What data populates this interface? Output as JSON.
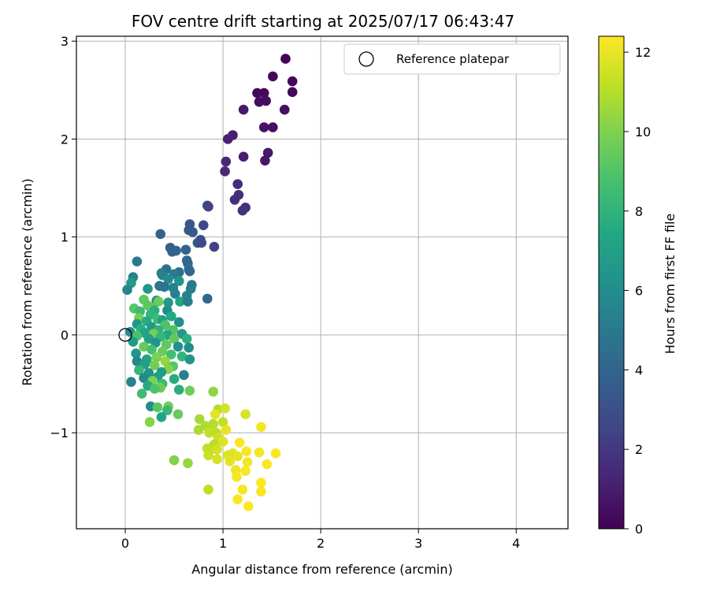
{
  "chart_data": {
    "type": "scatter",
    "title": "FOV centre drift starting at 2025/07/17 06:43:47",
    "xlabel": "Angular distance from reference (arcmin)",
    "ylabel": "Rotation from reference (arcmin)",
    "xlim": [
      -0.5,
      4.53
    ],
    "ylim": [
      -1.98,
      3.05
    ],
    "xticks": [
      0,
      1,
      2,
      3,
      4
    ],
    "yticks": [
      -1,
      0,
      1,
      2,
      3
    ],
    "ytick_labels": [
      "−1",
      "0",
      "1",
      "2",
      "3"
    ],
    "xtick_labels": [
      "0",
      "1",
      "2",
      "3",
      "4"
    ],
    "grid": true,
    "legend": {
      "placement": "top-right",
      "entries": [
        {
          "label": "Reference platepar",
          "marker": "open-circle",
          "color": "#000000"
        }
      ]
    },
    "reference_point": {
      "x": 0,
      "y": 0
    },
    "colorbar": {
      "label": "Hours from first FF file",
      "colormap": "viridis",
      "range": [
        0,
        12.4
      ],
      "ticks": [
        0,
        2,
        4,
        6,
        8,
        10,
        12
      ]
    },
    "points": [
      {
        "x": 1.64,
        "y": 2.82,
        "c": 0.1
      },
      {
        "x": 1.51,
        "y": 2.64,
        "c": 0.2
      },
      {
        "x": 1.71,
        "y": 2.59,
        "c": 0.2
      },
      {
        "x": 1.35,
        "y": 2.47,
        "c": 0.3
      },
      {
        "x": 1.42,
        "y": 2.47,
        "c": 0.3
      },
      {
        "x": 1.71,
        "y": 2.48,
        "c": 0.3
      },
      {
        "x": 1.44,
        "y": 2.39,
        "c": 0.4
      },
      {
        "x": 1.37,
        "y": 2.38,
        "c": 0.4
      },
      {
        "x": 1.63,
        "y": 2.3,
        "c": 0.5
      },
      {
        "x": 1.21,
        "y": 2.3,
        "c": 0.8
      },
      {
        "x": 1.51,
        "y": 2.12,
        "c": 0.5
      },
      {
        "x": 1.42,
        "y": 2.12,
        "c": 0.6
      },
      {
        "x": 1.1,
        "y": 2.04,
        "c": 1.0
      },
      {
        "x": 1.05,
        "y": 2.0,
        "c": 1.1
      },
      {
        "x": 1.46,
        "y": 1.86,
        "c": 0.9
      },
      {
        "x": 1.21,
        "y": 1.82,
        "c": 1.0
      },
      {
        "x": 1.43,
        "y": 1.78,
        "c": 0.8
      },
      {
        "x": 1.03,
        "y": 1.77,
        "c": 1.4
      },
      {
        "x": 1.02,
        "y": 1.67,
        "c": 1.5
      },
      {
        "x": 1.15,
        "y": 1.54,
        "c": 1.5
      },
      {
        "x": 1.16,
        "y": 1.43,
        "c": 1.7
      },
      {
        "x": 1.12,
        "y": 1.38,
        "c": 1.6
      },
      {
        "x": 1.23,
        "y": 1.3,
        "c": 1.7
      },
      {
        "x": 1.2,
        "y": 1.27,
        "c": 1.8
      },
      {
        "x": 0.85,
        "y": 1.31,
        "c": 2.4
      },
      {
        "x": 0.84,
        "y": 1.32,
        "c": 2.5
      },
      {
        "x": 0.66,
        "y": 1.13,
        "c": 3.4
      },
      {
        "x": 0.8,
        "y": 1.12,
        "c": 2.7
      },
      {
        "x": 0.65,
        "y": 1.07,
        "c": 3.3
      },
      {
        "x": 0.69,
        "y": 1.05,
        "c": 3.5
      },
      {
        "x": 0.36,
        "y": 1.03,
        "c": 3.9
      },
      {
        "x": 0.77,
        "y": 0.97,
        "c": 2.9
      },
      {
        "x": 0.74,
        "y": 0.94,
        "c": 3.3
      },
      {
        "x": 0.78,
        "y": 0.94,
        "c": 2.8
      },
      {
        "x": 0.91,
        "y": 0.9,
        "c": 2.4
      },
      {
        "x": 0.46,
        "y": 0.89,
        "c": 3.8
      },
      {
        "x": 0.52,
        "y": 0.86,
        "c": 4.0
      },
      {
        "x": 0.62,
        "y": 0.87,
        "c": 3.9
      },
      {
        "x": 0.48,
        "y": 0.85,
        "c": 3.9
      },
      {
        "x": 0.63,
        "y": 0.76,
        "c": 4.3
      },
      {
        "x": 0.12,
        "y": 0.75,
        "c": 5.0
      },
      {
        "x": 0.64,
        "y": 0.73,
        "c": 4.1
      },
      {
        "x": 0.42,
        "y": 0.67,
        "c": 4.6
      },
      {
        "x": 0.65,
        "y": 0.67,
        "c": 4.5
      },
      {
        "x": 0.66,
        "y": 0.65,
        "c": 4.2
      },
      {
        "x": 0.55,
        "y": 0.64,
        "c": 4.4
      },
      {
        "x": 0.37,
        "y": 0.63,
        "c": 5.2
      },
      {
        "x": 0.5,
        "y": 0.62,
        "c": 5.0
      },
      {
        "x": 0.38,
        "y": 0.61,
        "c": 5.4
      },
      {
        "x": 0.08,
        "y": 0.59,
        "c": 5.5
      },
      {
        "x": 0.44,
        "y": 0.57,
        "c": 6.0
      },
      {
        "x": 0.55,
        "y": 0.55,
        "c": 6.4
      },
      {
        "x": 0.06,
        "y": 0.53,
        "c": 6.8
      },
      {
        "x": 0.68,
        "y": 0.51,
        "c": 4.9
      },
      {
        "x": 0.35,
        "y": 0.5,
        "c": 4.7
      },
      {
        "x": 0.4,
        "y": 0.49,
        "c": 4.8
      },
      {
        "x": 0.49,
        "y": 0.48,
        "c": 5.3
      },
      {
        "x": 0.67,
        "y": 0.47,
        "c": 5.1
      },
      {
        "x": 0.02,
        "y": 0.46,
        "c": 5.6
      },
      {
        "x": 0.23,
        "y": 0.47,
        "c": 6.6
      },
      {
        "x": 0.51,
        "y": 0.42,
        "c": 5.3
      },
      {
        "x": 0.63,
        "y": 0.4,
        "c": 5.4
      },
      {
        "x": 0.84,
        "y": 0.37,
        "c": 4.1
      },
      {
        "x": 0.19,
        "y": 0.36,
        "c": 9.3
      },
      {
        "x": 0.32,
        "y": 0.35,
        "c": 6.1
      },
      {
        "x": 0.56,
        "y": 0.34,
        "c": 7.3
      },
      {
        "x": 0.44,
        "y": 0.33,
        "c": 6.7
      },
      {
        "x": 0.64,
        "y": 0.34,
        "c": 5.2
      },
      {
        "x": 0.34,
        "y": 0.34,
        "c": 9.6
      },
      {
        "x": 0.23,
        "y": 0.3,
        "c": 9.2
      },
      {
        "x": 0.09,
        "y": 0.27,
        "c": 9.1
      },
      {
        "x": 0.27,
        "y": 0.28,
        "c": 9.3
      },
      {
        "x": 0.15,
        "y": 0.24,
        "c": 8.4
      },
      {
        "x": 0.3,
        "y": 0.25,
        "c": 7.8
      },
      {
        "x": 0.43,
        "y": 0.25,
        "c": 6.0
      },
      {
        "x": 0.26,
        "y": 0.21,
        "c": 8.1
      },
      {
        "x": 0.47,
        "y": 0.19,
        "c": 7.5
      },
      {
        "x": 0.14,
        "y": 0.17,
        "c": 9.8
      },
      {
        "x": 0.33,
        "y": 0.16,
        "c": 8.5
      },
      {
        "x": 0.38,
        "y": 0.15,
        "c": 7.1
      },
      {
        "x": 0.22,
        "y": 0.14,
        "c": 7.6
      },
      {
        "x": 0.55,
        "y": 0.13,
        "c": 6.1
      },
      {
        "x": 0.12,
        "y": 0.11,
        "c": 6.5
      },
      {
        "x": 0.41,
        "y": 0.1,
        "c": 8.9
      },
      {
        "x": 0.27,
        "y": 0.08,
        "c": 6.7
      },
      {
        "x": 0.16,
        "y": 0.06,
        "c": 7.8
      },
      {
        "x": 0.34,
        "y": 0.05,
        "c": 8.0
      },
      {
        "x": 0.49,
        "y": 0.05,
        "c": 9.0
      },
      {
        "x": 0.05,
        "y": 0.03,
        "c": 6.0
      },
      {
        "x": 0.2,
        "y": 0.02,
        "c": 7.2
      },
      {
        "x": 0.29,
        "y": 0.01,
        "c": 9.8
      },
      {
        "x": 0.43,
        "y": 0.0,
        "c": 7.4
      },
      {
        "x": 0.58,
        "y": 0.01,
        "c": 6.6
      },
      {
        "x": 0.12,
        "y": -0.01,
        "c": 8.8
      },
      {
        "x": 0.36,
        "y": -0.02,
        "c": 8.2
      },
      {
        "x": 0.24,
        "y": -0.04,
        "c": 7.0
      },
      {
        "x": 0.5,
        "y": -0.04,
        "c": 9.4
      },
      {
        "x": 0.63,
        "y": -0.04,
        "c": 7.9
      },
      {
        "x": 0.08,
        "y": -0.07,
        "c": 6.8
      },
      {
        "x": 0.31,
        "y": -0.08,
        "c": 6.3
      },
      {
        "x": 0.42,
        "y": -0.1,
        "c": 9.3
      },
      {
        "x": 0.19,
        "y": -0.12,
        "c": 9.5
      },
      {
        "x": 0.54,
        "y": -0.12,
        "c": 6.1
      },
      {
        "x": 0.65,
        "y": -0.13,
        "c": 6.0
      },
      {
        "x": 0.27,
        "y": -0.15,
        "c": 8.7
      },
      {
        "x": 0.38,
        "y": -0.17,
        "c": 9.6
      },
      {
        "x": 0.11,
        "y": -0.19,
        "c": 6.4
      },
      {
        "x": 0.47,
        "y": -0.2,
        "c": 8.6
      },
      {
        "x": 0.58,
        "y": -0.22,
        "c": 8.1
      },
      {
        "x": 0.32,
        "y": -0.23,
        "c": 9.9
      },
      {
        "x": 0.22,
        "y": -0.25,
        "c": 7.3
      },
      {
        "x": 0.12,
        "y": -0.27,
        "c": 5.7
      },
      {
        "x": 0.66,
        "y": -0.25,
        "c": 6.4
      },
      {
        "x": 0.41,
        "y": -0.27,
        "c": 10.4
      },
      {
        "x": 0.2,
        "y": -0.3,
        "c": 7.0
      },
      {
        "x": 0.3,
        "y": -0.31,
        "c": 9.7
      },
      {
        "x": 0.49,
        "y": -0.32,
        "c": 9.1
      },
      {
        "x": 0.44,
        "y": -0.35,
        "c": 10.1
      },
      {
        "x": 0.14,
        "y": -0.36,
        "c": 8.2
      },
      {
        "x": 0.37,
        "y": -0.38,
        "c": 6.8
      },
      {
        "x": 0.24,
        "y": -0.39,
        "c": 6.2
      },
      {
        "x": 0.6,
        "y": -0.41,
        "c": 5.3
      },
      {
        "x": 0.33,
        "y": -0.43,
        "c": 6.9
      },
      {
        "x": 0.19,
        "y": -0.44,
        "c": 5.8
      },
      {
        "x": 0.5,
        "y": -0.45,
        "c": 7.7
      },
      {
        "x": 0.28,
        "y": -0.47,
        "c": 9.9
      },
      {
        "x": 0.06,
        "y": -0.48,
        "c": 5.4
      },
      {
        "x": 0.38,
        "y": -0.5,
        "c": 8.4
      },
      {
        "x": 0.23,
        "y": -0.52,
        "c": 7.5
      },
      {
        "x": 0.36,
        "y": -0.54,
        "c": 9.6
      },
      {
        "x": 0.3,
        "y": -0.55,
        "c": 8.9
      },
      {
        "x": 0.55,
        "y": -0.56,
        "c": 7.7
      },
      {
        "x": 0.66,
        "y": -0.57,
        "c": 9.7
      },
      {
        "x": 0.9,
        "y": -0.58,
        "c": 10.3
      },
      {
        "x": 0.17,
        "y": -0.6,
        "c": 8.5
      },
      {
        "x": 0.26,
        "y": -0.73,
        "c": 6.0
      },
      {
        "x": 0.44,
        "y": -0.73,
        "c": 9.7
      },
      {
        "x": 0.33,
        "y": -0.74,
        "c": 9.2
      },
      {
        "x": 0.43,
        "y": -0.77,
        "c": 8.3
      },
      {
        "x": 0.54,
        "y": -0.81,
        "c": 9.5
      },
      {
        "x": 0.37,
        "y": -0.84,
        "c": 7.3
      },
      {
        "x": 0.25,
        "y": -0.89,
        "c": 10.1
      },
      {
        "x": 0.95,
        "y": -0.76,
        "c": 11.0
      },
      {
        "x": 1.02,
        "y": -0.75,
        "c": 11.6
      },
      {
        "x": 1.23,
        "y": -0.81,
        "c": 11.7
      },
      {
        "x": 0.92,
        "y": -0.81,
        "c": 11.9
      },
      {
        "x": 0.76,
        "y": -0.86,
        "c": 10.7
      },
      {
        "x": 1.0,
        "y": -0.89,
        "c": 11.3
      },
      {
        "x": 0.9,
        "y": -0.91,
        "c": 11.0
      },
      {
        "x": 0.82,
        "y": -0.93,
        "c": 10.9
      },
      {
        "x": 1.39,
        "y": -0.94,
        "c": 12.2
      },
      {
        "x": 0.75,
        "y": -0.97,
        "c": 10.8
      },
      {
        "x": 1.03,
        "y": -0.97,
        "c": 12.0
      },
      {
        "x": 0.86,
        "y": -1.0,
        "c": 11.3
      },
      {
        "x": 0.93,
        "y": -1.0,
        "c": 11.1
      },
      {
        "x": 0.95,
        "y": -1.05,
        "c": 11.4
      },
      {
        "x": 1.0,
        "y": -1.09,
        "c": 11.8
      },
      {
        "x": 1.17,
        "y": -1.1,
        "c": 12.3
      },
      {
        "x": 0.91,
        "y": -1.12,
        "c": 11.1
      },
      {
        "x": 0.84,
        "y": -1.16,
        "c": 11.2
      },
      {
        "x": 0.86,
        "y": -1.19,
        "c": 11.3
      },
      {
        "x": 0.94,
        "y": -1.17,
        "c": 11.6
      },
      {
        "x": 1.24,
        "y": -1.19,
        "c": 12.3
      },
      {
        "x": 1.37,
        "y": -1.2,
        "c": 12.2
      },
      {
        "x": 1.54,
        "y": -1.21,
        "c": 12.3
      },
      {
        "x": 1.1,
        "y": -1.21,
        "c": 11.9
      },
      {
        "x": 0.85,
        "y": -1.23,
        "c": 11.4
      },
      {
        "x": 1.05,
        "y": -1.23,
        "c": 11.8
      },
      {
        "x": 1.15,
        "y": -1.24,
        "c": 12.0
      },
      {
        "x": 0.94,
        "y": -1.27,
        "c": 11.6
      },
      {
        "x": 0.5,
        "y": -1.28,
        "c": 10.0
      },
      {
        "x": 1.07,
        "y": -1.29,
        "c": 11.9
      },
      {
        "x": 1.25,
        "y": -1.3,
        "c": 12.2
      },
      {
        "x": 0.64,
        "y": -1.31,
        "c": 10.4
      },
      {
        "x": 1.45,
        "y": -1.32,
        "c": 12.3
      },
      {
        "x": 1.13,
        "y": -1.38,
        "c": 12.1
      },
      {
        "x": 1.23,
        "y": -1.39,
        "c": 12.3
      },
      {
        "x": 1.14,
        "y": -1.45,
        "c": 12.2
      },
      {
        "x": 1.39,
        "y": -1.51,
        "c": 12.4
      },
      {
        "x": 0.85,
        "y": -1.58,
        "c": 11.2
      },
      {
        "x": 1.2,
        "y": -1.58,
        "c": 12.3
      },
      {
        "x": 1.39,
        "y": -1.6,
        "c": 12.3
      },
      {
        "x": 1.15,
        "y": -1.68,
        "c": 12.3
      },
      {
        "x": 1.26,
        "y": -1.75,
        "c": 12.4
      }
    ]
  }
}
